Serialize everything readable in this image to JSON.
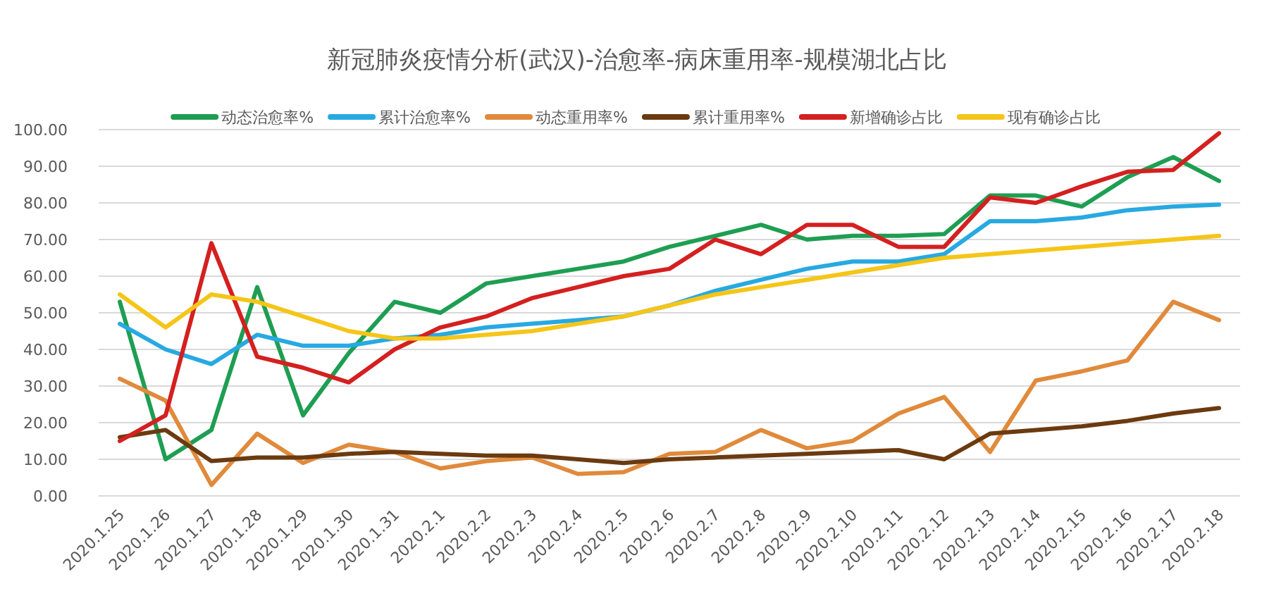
{
  "chart_data": {
    "type": "line",
    "title": "新冠肺炎疫情分析(武汉)-治愈率-病床重用率-规模湖北占比",
    "categories": [
      "2020.1.25",
      "2020.1.26",
      "2020.1.27",
      "2020.1.28",
      "2020.1.29",
      "2020.1.30",
      "2020.1.31",
      "2020.2.1",
      "2020.2.2",
      "2020.2.3",
      "2020.2.4",
      "2020.2.5",
      "2020.2.6",
      "2020.2.7",
      "2020.2.8",
      "2020.2.9",
      "2020.2.10",
      "2020.2.11",
      "2020.2.12",
      "2020.2.13",
      "2020.2.14",
      "2020.2.15",
      "2020.2.16",
      "2020.2.17",
      "2020.2.18"
    ],
    "series": [
      {
        "name": "动态治愈率%",
        "color": "#1e9e52",
        "values": [
          53,
          10,
          18,
          57,
          22,
          39,
          53,
          50,
          58,
          60,
          62,
          64,
          68,
          71,
          74,
          70,
          71,
          71,
          71.5,
          82,
          82,
          79,
          87,
          92.5,
          86
        ]
      },
      {
        "name": "累计治愈率%",
        "color": "#27a9e1",
        "values": [
          47,
          40,
          36,
          44,
          41,
          41,
          43,
          44,
          46,
          47,
          48,
          49,
          52,
          56,
          59,
          62,
          64,
          64,
          66,
          75,
          75,
          76,
          78,
          79,
          79.5
        ]
      },
      {
        "name": "动态重用率%",
        "color": "#e08a3c",
        "values": [
          32,
          26,
          3,
          17,
          9,
          14,
          12,
          7.5,
          9.5,
          10.5,
          6,
          6.5,
          11.5,
          12,
          18,
          13,
          15,
          22.5,
          27,
          12,
          31.5,
          34,
          37,
          53,
          48
        ]
      },
      {
        "name": "累计重用率%",
        "color": "#6b3a10",
        "values": [
          16,
          18,
          9.5,
          10.5,
          10.5,
          11.5,
          12,
          11.5,
          11,
          11,
          10,
          9,
          10,
          10.5,
          11,
          11.5,
          12,
          12.5,
          10,
          17,
          18,
          19,
          20.5,
          22.5,
          24
        ]
      },
      {
        "name": "新增确诊占比",
        "color": "#d42020",
        "values": [
          15,
          22,
          69,
          38,
          35,
          31,
          40,
          46,
          49,
          54,
          57,
          60,
          62,
          70,
          66,
          74,
          74,
          68,
          68,
          81.5,
          80,
          84.5,
          88.5,
          89,
          99
        ]
      },
      {
        "name": "现有确诊占比",
        "color": "#f5c518",
        "values": [
          55,
          46,
          55,
          53,
          49,
          45,
          43,
          43,
          44,
          45,
          47,
          49,
          52,
          55,
          57,
          59,
          61,
          63,
          65,
          66,
          67,
          68,
          69,
          70,
          71
        ]
      }
    ],
    "ylim": [
      0,
      100
    ],
    "yticks": [
      {
        "value": 0,
        "label": "0.00"
      },
      {
        "value": 10,
        "label": "10.00"
      },
      {
        "value": 20,
        "label": "20.00"
      },
      {
        "value": 30,
        "label": "30.00"
      },
      {
        "value": 40,
        "label": "40.00"
      },
      {
        "value": 50,
        "label": "50.00"
      },
      {
        "value": 60,
        "label": "60.00"
      },
      {
        "value": 70,
        "label": "70.00"
      },
      {
        "value": 80,
        "label": "80.00"
      },
      {
        "value": 90,
        "label": "90.00"
      },
      {
        "value": 100,
        "label": "100.00"
      }
    ],
    "grid": "y",
    "legend": "top",
    "marker": "none",
    "line_style": "solid"
  }
}
